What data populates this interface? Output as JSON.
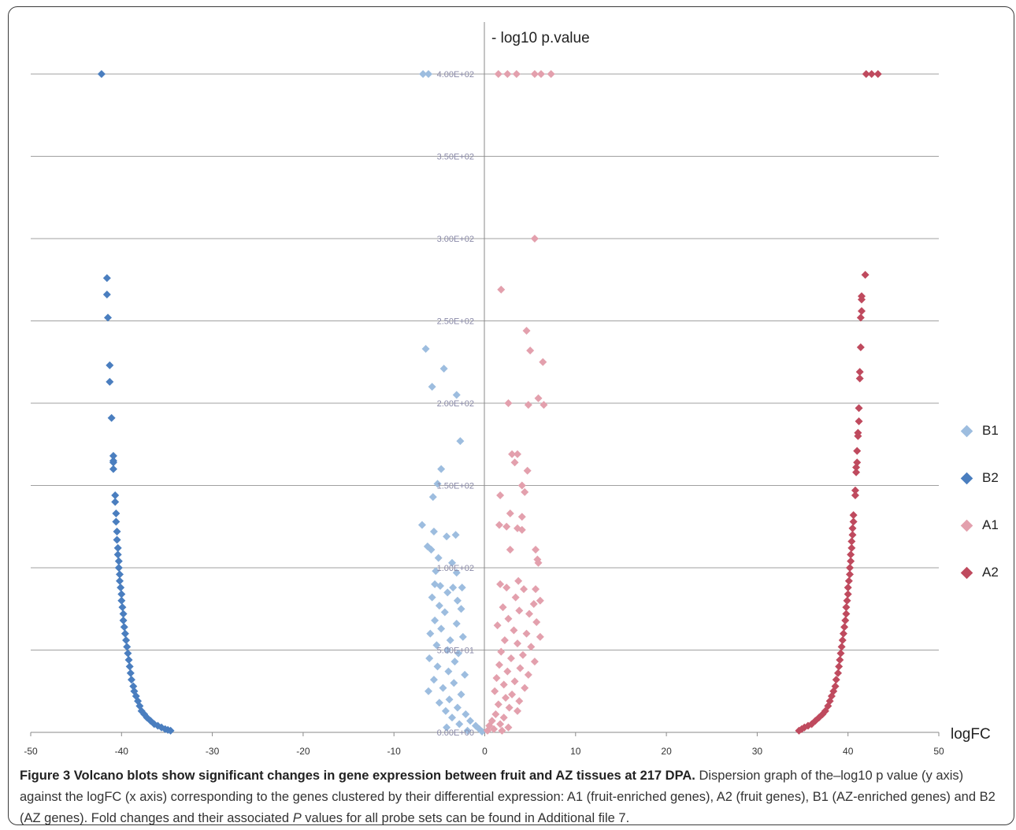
{
  "chart_data": {
    "type": "scatter",
    "title": "",
    "xlabel": "logFC",
    "ylabel": "- log10 p.value",
    "xlim": [
      -50,
      50
    ],
    "ylim": [
      0,
      400
    ],
    "x_ticks": [
      "-50",
      "-40",
      "-30",
      "-20",
      "-10",
      "0",
      "10",
      "20",
      "30",
      "40",
      "50"
    ],
    "y_ticks": [
      "0.00E+00",
      "5.00E+01",
      "1.00E+02",
      "1.50E+02",
      "2.00E+02",
      "2.50E+02",
      "3.00E+02",
      "3.50E+02",
      "4.00E+02"
    ],
    "grid": true,
    "legend_position": "right",
    "series": [
      {
        "name": "B1",
        "color": "#9dbddf",
        "points": [
          [
            -6.8,
            400
          ],
          [
            -6.2,
            400
          ],
          [
            -6.5,
            233
          ],
          [
            -4.5,
            221
          ],
          [
            -5.8,
            210
          ],
          [
            -3.1,
            205
          ],
          [
            -2.7,
            177
          ],
          [
            -4.8,
            160
          ],
          [
            -5.2,
            151
          ],
          [
            -5.7,
            143
          ],
          [
            -6.9,
            126
          ],
          [
            -5.6,
            122
          ],
          [
            -6.3,
            113
          ],
          [
            -5.9,
            111
          ],
          [
            -4.2,
            119
          ],
          [
            -3.2,
            120
          ],
          [
            -5.1,
            106
          ],
          [
            -3.6,
            103
          ],
          [
            -5.4,
            98
          ],
          [
            -3.1,
            97
          ],
          [
            -5.5,
            90
          ],
          [
            -4.9,
            89
          ],
          [
            -2.5,
            88
          ],
          [
            -4.1,
            85
          ],
          [
            -3.5,
            88
          ],
          [
            -5.8,
            82
          ],
          [
            -3.0,
            80
          ],
          [
            -5.0,
            77
          ],
          [
            -2.6,
            75
          ],
          [
            -4.4,
            73
          ],
          [
            -5.5,
            68
          ],
          [
            -3.1,
            66
          ],
          [
            -4.8,
            63
          ],
          [
            -6.0,
            60
          ],
          [
            -2.4,
            58
          ],
          [
            -3.8,
            56
          ],
          [
            -5.3,
            53
          ],
          [
            -4.1,
            50
          ],
          [
            -2.9,
            48
          ],
          [
            -6.1,
            45
          ],
          [
            -3.3,
            43
          ],
          [
            -5.2,
            40
          ],
          [
            -4.0,
            37
          ],
          [
            -2.2,
            35
          ],
          [
            -5.6,
            32
          ],
          [
            -3.4,
            30
          ],
          [
            -4.6,
            27
          ],
          [
            -6.2,
            25
          ],
          [
            -2.6,
            23
          ],
          [
            -3.9,
            20
          ],
          [
            -5.0,
            18
          ],
          [
            -3.0,
            15
          ],
          [
            -4.3,
            13
          ],
          [
            -2.1,
            11
          ],
          [
            -3.6,
            9
          ],
          [
            -1.6,
            7
          ],
          [
            -2.8,
            5
          ],
          [
            -1.0,
            4
          ],
          [
            -4.2,
            3
          ],
          [
            -0.6,
            2
          ],
          [
            -1.9,
            1
          ],
          [
            -0.3,
            0.5
          ]
        ]
      },
      {
        "name": "B2",
        "color": "#4a7ebf",
        "points": [
          [
            -42.2,
            400
          ],
          [
            -41.6,
            276
          ],
          [
            -41.6,
            266
          ],
          [
            -41.5,
            252
          ],
          [
            -41.3,
            223
          ],
          [
            -41.3,
            213
          ],
          [
            -41.1,
            191
          ],
          [
            -40.9,
            168
          ],
          [
            -40.9,
            165
          ],
          [
            -40.9,
            164
          ],
          [
            -40.9,
            160
          ],
          [
            -40.7,
            144
          ],
          [
            -40.7,
            140
          ],
          [
            -40.6,
            133
          ],
          [
            -40.6,
            128
          ],
          [
            -40.5,
            122
          ],
          [
            -40.5,
            117
          ],
          [
            -40.4,
            112
          ],
          [
            -40.4,
            108
          ],
          [
            -40.3,
            104
          ],
          [
            -40.3,
            100
          ],
          [
            -40.2,
            96
          ],
          [
            -40.2,
            92
          ],
          [
            -40.1,
            88
          ],
          [
            -40.0,
            84
          ],
          [
            -40.0,
            80
          ],
          [
            -39.9,
            76
          ],
          [
            -39.8,
            72
          ],
          [
            -39.8,
            68
          ],
          [
            -39.7,
            64
          ],
          [
            -39.6,
            60
          ],
          [
            -39.5,
            56
          ],
          [
            -39.4,
            52
          ],
          [
            -39.3,
            48
          ],
          [
            -39.2,
            44
          ],
          [
            -39.1,
            40
          ],
          [
            -39.0,
            36
          ],
          [
            -38.9,
            32
          ],
          [
            -38.7,
            28
          ],
          [
            -38.6,
            25
          ],
          [
            -38.4,
            22
          ],
          [
            -38.2,
            19
          ],
          [
            -38.0,
            16
          ],
          [
            -37.8,
            13
          ],
          [
            -37.5,
            11
          ],
          [
            -37.2,
            9
          ],
          [
            -36.8,
            7
          ],
          [
            -36.4,
            5
          ],
          [
            -36.0,
            4
          ],
          [
            -35.6,
            3
          ],
          [
            -35.2,
            2
          ],
          [
            -34.9,
            1.5
          ],
          [
            -34.6,
            1
          ]
        ]
      },
      {
        "name": "A1",
        "color": "#e3a0ad",
        "points": [
          [
            1.5,
            400
          ],
          [
            2.5,
            400
          ],
          [
            3.5,
            400
          ],
          [
            5.5,
            400
          ],
          [
            6.2,
            400
          ],
          [
            7.3,
            400
          ],
          [
            5.5,
            300
          ],
          [
            1.8,
            269
          ],
          [
            4.6,
            244
          ],
          [
            5.0,
            232
          ],
          [
            6.4,
            225
          ],
          [
            2.6,
            200
          ],
          [
            4.8,
            199
          ],
          [
            5.9,
            203
          ],
          [
            6.5,
            199
          ],
          [
            3.0,
            169
          ],
          [
            3.6,
            169
          ],
          [
            3.3,
            164
          ],
          [
            4.7,
            159
          ],
          [
            4.1,
            150
          ],
          [
            4.4,
            146
          ],
          [
            1.7,
            144
          ],
          [
            2.8,
            133
          ],
          [
            4.1,
            131
          ],
          [
            1.6,
            126
          ],
          [
            2.4,
            125
          ],
          [
            3.6,
            124
          ],
          [
            4.1,
            123
          ],
          [
            2.8,
            111
          ],
          [
            5.6,
            111
          ],
          [
            5.8,
            105
          ],
          [
            5.9,
            103
          ],
          [
            1.7,
            90
          ],
          [
            3.7,
            92
          ],
          [
            2.4,
            88
          ],
          [
            5.6,
            87
          ],
          [
            4.3,
            87
          ],
          [
            3.4,
            82
          ],
          [
            5.4,
            78
          ],
          [
            6.1,
            80
          ],
          [
            2.0,
            76
          ],
          [
            3.8,
            74
          ],
          [
            4.9,
            72
          ],
          [
            2.6,
            69
          ],
          [
            5.7,
            67
          ],
          [
            1.4,
            65
          ],
          [
            3.2,
            62
          ],
          [
            4.6,
            60
          ],
          [
            6.1,
            58
          ],
          [
            2.2,
            56
          ],
          [
            3.6,
            54
          ],
          [
            5.1,
            52
          ],
          [
            1.8,
            49
          ],
          [
            4.2,
            47
          ],
          [
            2.9,
            45
          ],
          [
            5.5,
            43
          ],
          [
            1.6,
            41
          ],
          [
            3.9,
            39
          ],
          [
            2.5,
            37
          ],
          [
            4.8,
            35
          ],
          [
            1.3,
            33
          ],
          [
            3.3,
            31
          ],
          [
            2.1,
            29
          ],
          [
            4.4,
            27
          ],
          [
            1.1,
            25
          ],
          [
            3.0,
            23
          ],
          [
            2.3,
            21
          ],
          [
            3.8,
            19
          ],
          [
            1.5,
            17
          ],
          [
            2.7,
            15
          ],
          [
            3.6,
            13
          ],
          [
            1.2,
            11
          ],
          [
            2.1,
            9
          ],
          [
            0.8,
            7
          ],
          [
            1.7,
            5
          ],
          [
            0.5,
            4
          ],
          [
            2.6,
            3
          ],
          [
            1.0,
            2
          ],
          [
            0.3,
            1
          ],
          [
            1.9,
            1
          ]
        ]
      },
      {
        "name": "A2",
        "color": "#bf4a5e",
        "points": [
          [
            42.0,
            400
          ],
          [
            42.6,
            400
          ],
          [
            43.3,
            400
          ],
          [
            41.9,
            278
          ],
          [
            41.5,
            265
          ],
          [
            41.5,
            263
          ],
          [
            41.5,
            256
          ],
          [
            41.4,
            252
          ],
          [
            41.4,
            234
          ],
          [
            41.3,
            219
          ],
          [
            41.3,
            215
          ],
          [
            41.2,
            197
          ],
          [
            41.2,
            189
          ],
          [
            41.1,
            182
          ],
          [
            41.1,
            180
          ],
          [
            41.0,
            171
          ],
          [
            41.0,
            164
          ],
          [
            40.9,
            161
          ],
          [
            40.9,
            158
          ],
          [
            40.8,
            147
          ],
          [
            40.8,
            144
          ],
          [
            40.6,
            132
          ],
          [
            40.6,
            128
          ],
          [
            40.5,
            124
          ],
          [
            40.5,
            120
          ],
          [
            40.4,
            116
          ],
          [
            40.4,
            112
          ],
          [
            40.3,
            108
          ],
          [
            40.3,
            104
          ],
          [
            40.2,
            100
          ],
          [
            40.2,
            96
          ],
          [
            40.1,
            92
          ],
          [
            40.0,
            88
          ],
          [
            40.0,
            84
          ],
          [
            39.9,
            80
          ],
          [
            39.8,
            76
          ],
          [
            39.8,
            72
          ],
          [
            39.7,
            68
          ],
          [
            39.6,
            64
          ],
          [
            39.5,
            60
          ],
          [
            39.4,
            56
          ],
          [
            39.3,
            52
          ],
          [
            39.2,
            48
          ],
          [
            39.1,
            44
          ],
          [
            39.0,
            40
          ],
          [
            38.9,
            36
          ],
          [
            38.7,
            32
          ],
          [
            38.6,
            28
          ],
          [
            38.4,
            25
          ],
          [
            38.2,
            22
          ],
          [
            38.0,
            19
          ],
          [
            37.8,
            16
          ],
          [
            37.5,
            13
          ],
          [
            37.2,
            11
          ],
          [
            36.8,
            9
          ],
          [
            36.4,
            7
          ],
          [
            36.0,
            5
          ],
          [
            35.6,
            4
          ],
          [
            35.2,
            3
          ],
          [
            34.9,
            2
          ],
          [
            34.6,
            1
          ]
        ]
      }
    ]
  },
  "caption": {
    "bold": "Figure 3 Volcano blots show significant changes in gene expression between fruit and AZ tissues at 217 DPA.",
    "text_before_p": " Dispersion graph of the–log10 p value (y axis) against the logFC (x axis) corresponding to the genes clustered by their differential expression: A1 (fruit-enriched genes), A2 (fruit genes), B1 (AZ-enriched genes) and B2 (AZ genes). Fold changes and their associated ",
    "p_italic": "P",
    "text_after_p": " values for all probe sets can be found in Additional file 7."
  }
}
